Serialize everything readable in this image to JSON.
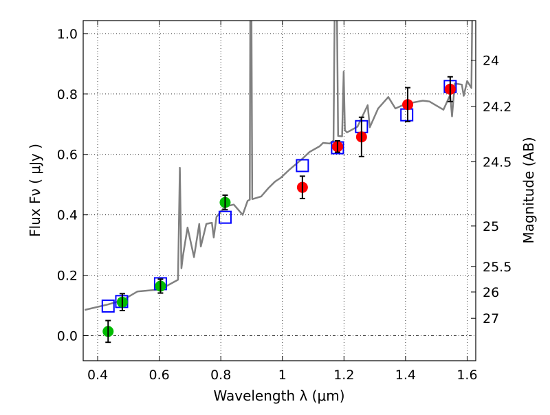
{
  "chart_data": {
    "type": "scatter",
    "xlabel": "Wavelength  λ (μm)",
    "ylabel": "Flux  Fν  ( μJy )",
    "ylabel_right": "Magnitude (AB)",
    "xlim": [
      0.353,
      1.628
    ],
    "ylim": [
      -0.083,
      1.043
    ],
    "grid": true,
    "x_ticks": [
      0.4,
      0.6,
      0.8,
      1.0,
      1.2,
      1.4,
      1.6
    ],
    "x_tick_labels": [
      "0.4",
      "0.6",
      "0.8",
      "1",
      "1.2",
      "1.4",
      "1.6"
    ],
    "y_ticks": [
      0.0,
      0.2,
      0.4,
      0.6,
      0.8,
      1.0
    ],
    "y_tick_labels": [
      "0.0",
      "0.2",
      "0.4",
      "0.6",
      "0.8",
      "1.0"
    ],
    "right_ticks_mag": [
      24,
      24.2,
      24.5,
      25,
      25.5,
      26,
      27
    ],
    "right_tick_labels": [
      "24",
      "24.2",
      "24.5",
      "25",
      "25.5",
      "26",
      "27"
    ],
    "ab_zeropoint": 23.9,
    "colors": {
      "spectrum": "#808080",
      "green": "#00bb00",
      "red": "#ff0000",
      "model": "#0000ff",
      "error": "#000000"
    },
    "series": [
      {
        "name": "model spectrum",
        "kind": "line",
        "x": [
          0.358,
          0.433,
          0.48,
          0.529,
          0.603,
          0.652,
          0.661,
          0.667,
          0.672,
          0.677,
          0.692,
          0.713,
          0.73,
          0.735,
          0.753,
          0.771,
          0.777,
          0.786,
          0.813,
          0.842,
          0.871,
          0.887,
          0.894,
          0.896,
          0.899,
          0.902,
          0.909,
          0.931,
          0.954,
          0.976,
          0.994,
          1.021,
          1.065,
          1.088,
          1.121,
          1.132,
          1.154,
          1.166,
          1.171,
          1.176,
          1.181,
          1.194,
          1.199,
          1.203,
          1.21,
          1.244,
          1.277,
          1.284,
          1.311,
          1.344,
          1.367,
          1.4,
          1.456,
          1.478,
          1.523,
          1.545,
          1.551,
          1.56,
          1.583,
          1.589,
          1.6,
          1.614,
          1.618,
          1.628
        ],
        "y": [
          0.085,
          0.103,
          0.117,
          0.146,
          0.153,
          0.18,
          0.185,
          0.556,
          0.223,
          0.264,
          0.358,
          0.26,
          0.37,
          0.295,
          0.37,
          0.374,
          0.325,
          0.393,
          0.427,
          0.434,
          0.4,
          0.446,
          0.45,
          1.2,
          1.2,
          0.452,
          0.454,
          0.461,
          0.488,
          0.51,
          0.522,
          0.548,
          0.586,
          0.608,
          0.627,
          0.638,
          0.636,
          0.646,
          1.2,
          1.2,
          0.661,
          0.66,
          0.874,
          0.68,
          0.673,
          0.692,
          0.763,
          0.69,
          0.752,
          0.79,
          0.752,
          0.767,
          0.778,
          0.775,
          0.748,
          0.797,
          0.726,
          0.835,
          0.831,
          0.794,
          0.843,
          0.82,
          1.2,
          1.2
        ]
      },
      {
        "name": "observed (green)",
        "kind": "points",
        "x": [
          0.434,
          0.48,
          0.604,
          0.814
        ],
        "y": [
          0.014,
          0.111,
          0.164,
          0.441
        ],
        "yerr": [
          0.036,
          0.028,
          0.023,
          0.024
        ]
      },
      {
        "name": "observed (red)",
        "kind": "points",
        "x": [
          1.065,
          1.179,
          1.257,
          1.407,
          1.545
        ],
        "y": [
          0.491,
          0.626,
          0.658,
          0.765,
          0.816
        ],
        "yerr": [
          0.037,
          0.019,
          0.065,
          0.056,
          0.041
        ]
      },
      {
        "name": "model photometry",
        "kind": "squares",
        "x": [
          0.434,
          0.478,
          0.604,
          0.814,
          1.065,
          1.179,
          1.257,
          1.404,
          1.545
        ],
        "y": [
          0.098,
          0.113,
          0.172,
          0.392,
          0.563,
          0.622,
          0.692,
          0.731,
          0.825
        ]
      }
    ]
  }
}
